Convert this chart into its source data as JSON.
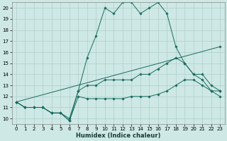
{
  "title": "",
  "xlabel": "Humidex (Indice chaleur)",
  "ylabel": "",
  "bg_color": "#cde8e5",
  "grid_color": "#b0cfcc",
  "line_color": "#1a6b5e",
  "xlim": [
    -0.5,
    23.5
  ],
  "ylim": [
    9.5,
    20.5
  ],
  "yticks": [
    10,
    11,
    12,
    13,
    14,
    15,
    16,
    17,
    18,
    19,
    20
  ],
  "xticks": [
    0,
    1,
    2,
    3,
    4,
    5,
    6,
    7,
    8,
    9,
    10,
    11,
    12,
    13,
    14,
    15,
    16,
    17,
    18,
    19,
    20,
    21,
    22,
    23
  ],
  "lines": [
    {
      "x": [
        0,
        1,
        2,
        3,
        4,
        5,
        6,
        7,
        8,
        9,
        10,
        11,
        12,
        13,
        14,
        15,
        16,
        17,
        18,
        19,
        20,
        21,
        22,
        23
      ],
      "y": [
        11.5,
        11.0,
        11.0,
        11.0,
        10.5,
        10.5,
        10.0,
        12.5,
        15.5,
        17.5,
        20.0,
        19.5,
        20.5,
        20.5,
        19.5,
        20.0,
        20.5,
        19.5,
        16.5,
        15.0,
        14.0,
        13.5,
        12.5,
        12.5
      ]
    },
    {
      "x": [
        0,
        1,
        2,
        3,
        4,
        5,
        6,
        7,
        8,
        9,
        10,
        11,
        12,
        13,
        14,
        15,
        16,
        17,
        18,
        19,
        20,
        21,
        22,
        23
      ],
      "y": [
        11.5,
        11.0,
        11.0,
        11.0,
        10.5,
        10.5,
        9.8,
        12.5,
        13.0,
        13.0,
        13.5,
        13.5,
        13.5,
        13.5,
        14.0,
        14.0,
        14.5,
        15.0,
        15.5,
        15.0,
        14.0,
        14.0,
        13.0,
        12.5
      ]
    },
    {
      "x": [
        0,
        1,
        2,
        3,
        4,
        5,
        6,
        7,
        8,
        9,
        10,
        11,
        12,
        13,
        14,
        15,
        16,
        17,
        18,
        19,
        20,
        21,
        22,
        23
      ],
      "y": [
        11.5,
        11.0,
        11.0,
        11.0,
        10.5,
        10.5,
        9.8,
        12.0,
        11.8,
        11.8,
        11.8,
        11.8,
        11.8,
        12.0,
        12.0,
        12.0,
        12.2,
        12.5,
        13.0,
        13.5,
        13.5,
        13.0,
        12.5,
        12.0
      ]
    },
    {
      "x": [
        0,
        23
      ],
      "y": [
        11.5,
        16.5
      ]
    }
  ]
}
